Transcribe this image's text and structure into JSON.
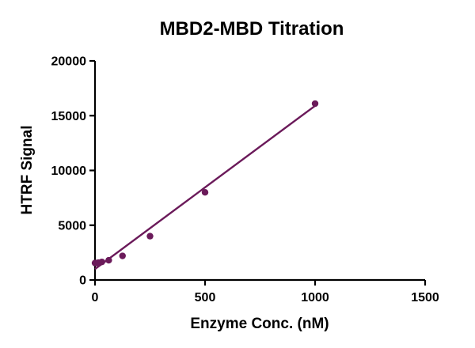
{
  "chart_data": {
    "type": "scatter",
    "title": "MBD2-MBD Titration",
    "xlabel": "Enzyme Conc. (nM)",
    "ylabel": "HTRF Signal",
    "xlim": [
      0,
      1500
    ],
    "ylim": [
      0,
      20000
    ],
    "x_ticks": [
      0,
      500,
      1000,
      1500
    ],
    "y_ticks": [
      0,
      5000,
      10000,
      15000,
      20000
    ],
    "series": [
      {
        "name": "MBD2-MBD",
        "color": "#6b1a5a",
        "points": [
          {
            "x": 0,
            "y": 1550
          },
          {
            "x": 7.8,
            "y": 1550
          },
          {
            "x": 15.6,
            "y": 1580
          },
          {
            "x": 31.25,
            "y": 1650
          },
          {
            "x": 62.5,
            "y": 1800
          },
          {
            "x": 125,
            "y": 2200
          },
          {
            "x": 250,
            "y": 4000
          },
          {
            "x": 500,
            "y": 8000
          },
          {
            "x": 1000,
            "y": 16100
          }
        ],
        "fit_line": {
          "x_start": 0,
          "y_start": 1000,
          "x_end": 1000,
          "y_end": 15900
        }
      }
    ]
  }
}
